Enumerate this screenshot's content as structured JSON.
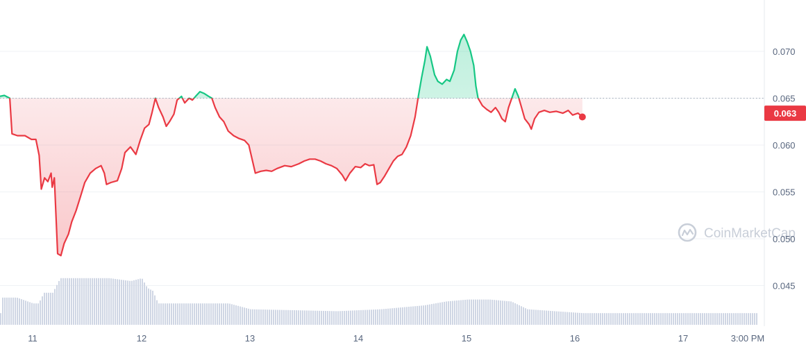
{
  "chart_data": {
    "type": "line",
    "x_ticks": [
      "11",
      "12",
      "13",
      "14",
      "15",
      "16",
      "17",
      "3:00 PM"
    ],
    "y_ticks": [
      "0.045",
      "0.050",
      "0.055",
      "0.060",
      "0.065",
      "0.070"
    ],
    "ylim": [
      0.041,
      0.0755
    ],
    "xlim": [
      10.7,
      17.55
    ],
    "baseline": 0.065,
    "current_price_label": "0.063",
    "current_price": 0.0634,
    "grid": true,
    "watermark": "CoinMarketCap",
    "colors": {
      "up": "#16c784",
      "down": "#ea3943",
      "volume": "#cfd6e4",
      "grid": "#eff2f5",
      "axis_text": "#58667e"
    },
    "series": [
      {
        "values": [
          [
            10.7,
            0.0652
          ],
          [
            10.74,
            0.0653
          ],
          [
            10.79,
            0.065
          ],
          [
            10.81,
            0.0612
          ],
          [
            10.86,
            0.061
          ],
          [
            10.93,
            0.061
          ],
          [
            10.99,
            0.0606
          ],
          [
            11.03,
            0.0606
          ],
          [
            11.06,
            0.0589
          ],
          [
            11.08,
            0.0553
          ],
          [
            11.11,
            0.0565
          ],
          [
            11.14,
            0.0561
          ],
          [
            11.17,
            0.057
          ],
          [
            11.18,
            0.0555
          ],
          [
            11.2,
            0.0565
          ],
          [
            11.23,
            0.0484
          ],
          [
            11.26,
            0.0482
          ],
          [
            11.29,
            0.0495
          ],
          [
            11.33,
            0.0505
          ],
          [
            11.36,
            0.0518
          ],
          [
            11.4,
            0.053
          ],
          [
            11.44,
            0.0545
          ],
          [
            11.48,
            0.056
          ],
          [
            11.53,
            0.057
          ],
          [
            11.58,
            0.0575
          ],
          [
            11.63,
            0.0578
          ],
          [
            11.66,
            0.057
          ],
          [
            11.68,
            0.0558
          ],
          [
            11.72,
            0.056
          ],
          [
            11.78,
            0.0562
          ],
          [
            11.82,
            0.0575
          ],
          [
            11.85,
            0.0592
          ],
          [
            11.9,
            0.0598
          ],
          [
            11.95,
            0.059
          ],
          [
            11.99,
            0.0605
          ],
          [
            12.03,
            0.0618
          ],
          [
            12.07,
            0.0622
          ],
          [
            12.1,
            0.0635
          ],
          [
            12.13,
            0.065
          ],
          [
            12.16,
            0.064
          ],
          [
            12.2,
            0.063
          ],
          [
            12.23,
            0.062
          ],
          [
            12.26,
            0.0625
          ],
          [
            12.3,
            0.0633
          ],
          [
            12.33,
            0.0648
          ],
          [
            12.37,
            0.0652
          ],
          [
            12.4,
            0.0645
          ],
          [
            12.44,
            0.065
          ],
          [
            12.47,
            0.0648
          ],
          [
            12.5,
            0.0652
          ],
          [
            12.54,
            0.0657
          ],
          [
            12.58,
            0.0655
          ],
          [
            12.62,
            0.0652
          ],
          [
            12.65,
            0.065
          ],
          [
            12.68,
            0.064
          ],
          [
            12.72,
            0.063
          ],
          [
            12.76,
            0.0625
          ],
          [
            12.8,
            0.0615
          ],
          [
            12.85,
            0.061
          ],
          [
            12.9,
            0.0607
          ],
          [
            12.95,
            0.0605
          ],
          [
            12.99,
            0.06
          ],
          [
            13.02,
            0.0585
          ],
          [
            13.05,
            0.057
          ],
          [
            13.1,
            0.0572
          ],
          [
            13.15,
            0.0573
          ],
          [
            13.2,
            0.0572
          ],
          [
            13.25,
            0.0575
          ],
          [
            13.32,
            0.0578
          ],
          [
            13.38,
            0.0577
          ],
          [
            13.45,
            0.058
          ],
          [
            13.5,
            0.0583
          ],
          [
            13.55,
            0.0585
          ],
          [
            13.6,
            0.0585
          ],
          [
            13.65,
            0.0583
          ],
          [
            13.7,
            0.058
          ],
          [
            13.75,
            0.0578
          ],
          [
            13.8,
            0.0575
          ],
          [
            13.85,
            0.0568
          ],
          [
            13.88,
            0.0562
          ],
          [
            13.92,
            0.057
          ],
          [
            13.97,
            0.0577
          ],
          [
            14.02,
            0.0576
          ],
          [
            14.06,
            0.058
          ],
          [
            14.1,
            0.0578
          ],
          [
            14.14,
            0.0579
          ],
          [
            14.17,
            0.0558
          ],
          [
            14.2,
            0.056
          ],
          [
            14.24,
            0.0567
          ],
          [
            14.28,
            0.0575
          ],
          [
            14.32,
            0.0583
          ],
          [
            14.36,
            0.0588
          ],
          [
            14.4,
            0.059
          ],
          [
            14.44,
            0.0598
          ],
          [
            14.48,
            0.061
          ],
          [
            14.52,
            0.063
          ],
          [
            14.55,
            0.0652
          ],
          [
            14.58,
            0.0672
          ],
          [
            14.61,
            0.069
          ],
          [
            14.63,
            0.0705
          ],
          [
            14.66,
            0.0695
          ],
          [
            14.7,
            0.0675
          ],
          [
            14.73,
            0.0668
          ],
          [
            14.77,
            0.0665
          ],
          [
            14.81,
            0.067
          ],
          [
            14.84,
            0.0668
          ],
          [
            14.88,
            0.068
          ],
          [
            14.91,
            0.07
          ],
          [
            14.94,
            0.0712
          ],
          [
            14.97,
            0.0718
          ],
          [
            15.0,
            0.071
          ],
          [
            15.03,
            0.07
          ],
          [
            15.06,
            0.0685
          ],
          [
            15.08,
            0.0663
          ],
          [
            15.1,
            0.065
          ],
          [
            15.14,
            0.0642
          ],
          [
            15.18,
            0.0638
          ],
          [
            15.22,
            0.0635
          ],
          [
            15.26,
            0.064
          ],
          [
            15.29,
            0.0635
          ],
          [
            15.32,
            0.0628
          ],
          [
            15.35,
            0.0625
          ],
          [
            15.38,
            0.064
          ],
          [
            15.41,
            0.065
          ],
          [
            15.44,
            0.066
          ],
          [
            15.47,
            0.0652
          ],
          [
            15.5,
            0.064
          ],
          [
            15.53,
            0.0628
          ],
          [
            15.57,
            0.0622
          ],
          [
            15.59,
            0.0617
          ],
          [
            15.62,
            0.0628
          ],
          [
            15.66,
            0.0635
          ],
          [
            15.71,
            0.0637
          ],
          [
            15.76,
            0.0635
          ],
          [
            15.82,
            0.0636
          ],
          [
            15.88,
            0.0634
          ],
          [
            15.93,
            0.0637
          ],
          [
            15.97,
            0.0632
          ],
          [
            16.02,
            0.0634
          ],
          [
            16.06,
            0.063
          ]
        ]
      }
    ],
    "volume": [
      [
        10.7,
        0.28
      ],
      [
        10.85,
        0.28
      ],
      [
        11.0,
        0.22
      ],
      [
        11.05,
        0.22
      ],
      [
        11.1,
        0.33
      ],
      [
        11.18,
        0.33
      ],
      [
        11.25,
        0.48
      ],
      [
        11.7,
        0.48
      ],
      [
        11.9,
        0.45
      ],
      [
        12.0,
        0.48
      ],
      [
        12.05,
        0.38
      ],
      [
        12.1,
        0.35
      ],
      [
        12.15,
        0.22
      ],
      [
        12.8,
        0.22
      ],
      [
        13.0,
        0.16
      ],
      [
        13.4,
        0.15
      ],
      [
        13.8,
        0.14
      ],
      [
        14.2,
        0.16
      ],
      [
        14.6,
        0.2
      ],
      [
        14.8,
        0.24
      ],
      [
        15.0,
        0.26
      ],
      [
        15.2,
        0.26
      ],
      [
        15.4,
        0.24
      ],
      [
        15.55,
        0.16
      ],
      [
        15.8,
        0.14
      ],
      [
        16.06,
        0.12
      ]
    ]
  }
}
